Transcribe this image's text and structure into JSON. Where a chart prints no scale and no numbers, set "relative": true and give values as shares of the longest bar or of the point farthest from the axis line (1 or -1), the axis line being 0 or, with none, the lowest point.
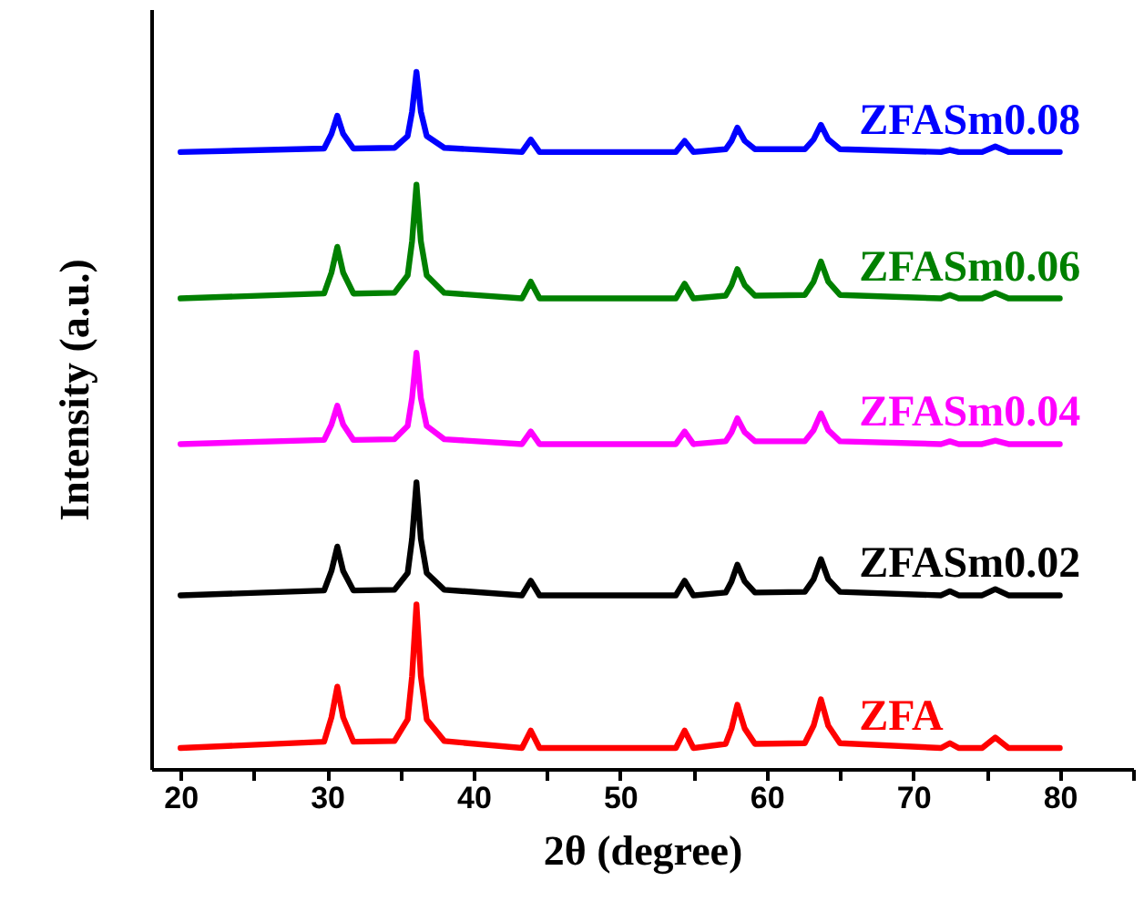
{
  "chart_data": {
    "type": "line",
    "relative": true,
    "xlabel": "2θ (degree)",
    "ylabel": "Intensity (a.u.)",
    "xlim": [
      18,
      85
    ],
    "xticks": [
      20,
      {
        "value": 25,
        "label": null
      },
      30,
      {
        "value": 35,
        "label": null
      },
      40,
      {
        "value": 45,
        "label": null
      },
      50,
      {
        "value": 55,
        "label": null
      },
      60,
      {
        "value": 65,
        "label": null
      },
      70,
      {
        "value": 75,
        "label": null
      },
      80,
      {
        "value": 85,
        "label": null
      }
    ],
    "grid": false,
    "legend": false,
    "marker": "none",
    "line_style": "solid",
    "x": [
      20,
      29.8,
      30.3,
      30.7,
      31.1,
      31.8,
      34.6,
      35.5,
      35.8,
      36.1,
      36.4,
      36.8,
      38.0,
      43.3,
      43.9,
      44.5,
      53.8,
      54.4,
      55.0,
      57.2,
      57.6,
      58.0,
      58.5,
      59.2,
      62.6,
      63.2,
      63.7,
      64.2,
      65.0,
      71.9,
      72.5,
      73.1,
      74.7,
      75.6,
      76.5,
      80
    ],
    "series": [
      {
        "name": "ZFA",
        "color": "#ff0000",
        "values": [
          0.03,
          0.039,
          0.074,
          0.118,
          0.074,
          0.039,
          0.04,
          0.071,
          0.133,
          0.236,
          0.133,
          0.071,
          0.04,
          0.03,
          0.055,
          0.03,
          0.03,
          0.055,
          0.03,
          0.036,
          0.058,
          0.092,
          0.058,
          0.036,
          0.037,
          0.062,
          0.1,
          0.062,
          0.037,
          0.03,
          0.037,
          0.03,
          0.03,
          0.045,
          0.03,
          0.03
        ]
      },
      {
        "name": "ZFASm0.02",
        "color": "#000000",
        "values": [
          0.249,
          0.256,
          0.284,
          0.319,
          0.284,
          0.256,
          0.257,
          0.281,
          0.33,
          0.411,
          0.33,
          0.281,
          0.257,
          0.249,
          0.27,
          0.249,
          0.249,
          0.27,
          0.249,
          0.253,
          0.269,
          0.293,
          0.269,
          0.253,
          0.254,
          0.272,
          0.301,
          0.272,
          0.254,
          0.249,
          0.255,
          0.249,
          0.249,
          0.258,
          0.249,
          0.249
        ]
      },
      {
        "name": "ZFASm0.04",
        "color": "#ff00ff",
        "values": [
          0.466,
          0.472,
          0.494,
          0.521,
          0.494,
          0.472,
          0.473,
          0.492,
          0.532,
          0.597,
          0.532,
          0.492,
          0.473,
          0.466,
          0.484,
          0.466,
          0.466,
          0.484,
          0.466,
          0.47,
          0.483,
          0.503,
          0.483,
          0.47,
          0.47,
          0.486,
          0.51,
          0.486,
          0.47,
          0.466,
          0.47,
          0.466,
          0.466,
          0.471,
          0.466,
          0.466
        ]
      },
      {
        "name": "ZFASm0.06",
        "color": "#008000",
        "values": [
          0.675,
          0.682,
          0.712,
          0.749,
          0.712,
          0.682,
          0.683,
          0.708,
          0.757,
          0.838,
          0.757,
          0.708,
          0.683,
          0.675,
          0.699,
          0.675,
          0.675,
          0.696,
          0.675,
          0.679,
          0.694,
          0.717,
          0.694,
          0.679,
          0.68,
          0.699,
          0.728,
          0.699,
          0.68,
          0.675,
          0.68,
          0.675,
          0.675,
          0.683,
          0.675,
          0.675
        ]
      },
      {
        "name": "ZFASm0.08",
        "color": "#0000ff",
        "values": [
          0.885,
          0.89,
          0.911,
          0.937,
          0.911,
          0.89,
          0.891,
          0.908,
          0.943,
          1.0,
          0.943,
          0.908,
          0.891,
          0.885,
          0.903,
          0.885,
          0.885,
          0.901,
          0.885,
          0.889,
          0.901,
          0.92,
          0.901,
          0.889,
          0.889,
          0.903,
          0.924,
          0.903,
          0.889,
          0.885,
          0.888,
          0.885,
          0.885,
          0.893,
          0.885,
          0.885
        ]
      }
    ]
  }
}
